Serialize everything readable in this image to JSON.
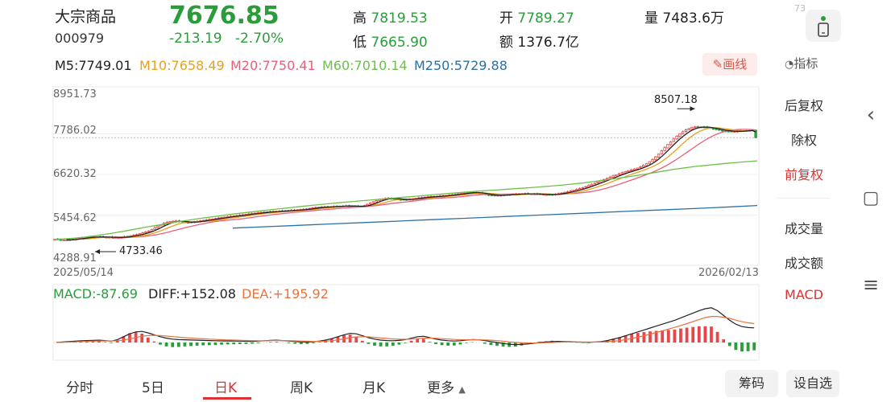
{
  "header": {
    "name": "大宗商品",
    "code": "000979",
    "price": "7676.85",
    "change": "-213.19",
    "change_pct": "-2.70%",
    "high_label": "高",
    "high": "7819.53",
    "low_label": "低",
    "low": "7665.90",
    "open_label": "开",
    "open": "7789.27",
    "amount_label": "额",
    "amount": "1376.7亿",
    "volume_label": "量",
    "volume": "7483.6万",
    "corner_badge": "73",
    "phone_icon": "phone-icon"
  },
  "ma": {
    "m5": "M5:7749.01",
    "m10": "M10:7658.49",
    "m20": "M20:7750.41",
    "m60": "M60:7010.14",
    "m250": "M250:5729.88",
    "colors": {
      "m5": "#222222",
      "m10": "#e8a020",
      "m20": "#e8607a",
      "m60": "#6cc04a",
      "m250": "#2c6fa3"
    }
  },
  "toolbar": {
    "draw_label": "画线",
    "indicator_label": "指标"
  },
  "side_menu": {
    "items": [
      "后复权",
      "除权",
      "前复权",
      "成交量",
      "成交额",
      "MACD"
    ],
    "active": [
      "前复权",
      "MACD"
    ]
  },
  "macd": {
    "macd": "MACD:-87.69",
    "diff": "DIFF:+152.08",
    "dea": "DEA:+195.92"
  },
  "chart_data": {
    "type": "line",
    "yticks": [
      "8951.73",
      "7786.02",
      "6620.32",
      "5454.62",
      "4288.91"
    ],
    "ylim": [
      4288.91,
      8951.73
    ],
    "x_start": "2025/05/14",
    "x_end": "2026/02/13",
    "max_label": "8507.18",
    "min_label": "4733.46",
    "max_value": 8507.18,
    "min_value": 4733.46,
    "last_close": 7676.85,
    "up_color": "#e8474a",
    "down_color": "#2a9d3a",
    "close_series": [
      4760,
      4752,
      4745,
      4738,
      4740,
      4748,
      4760,
      4772,
      4785,
      4800,
      4812,
      4820,
      4826,
      4830,
      4828,
      4825,
      4822,
      4820,
      4818,
      4815,
      4812,
      4810,
      4815,
      4830,
      4845,
      4860,
      4875,
      4895,
      4920,
      4945,
      4970,
      5000,
      5040,
      5090,
      5140,
      5180,
      5220,
      5250,
      5270,
      5280,
      5285,
      5275,
      5262,
      5250,
      5245,
      5250,
      5262,
      5275,
      5290,
      5305,
      5318,
      5330,
      5342,
      5356,
      5370,
      5385,
      5400,
      5410,
      5420,
      5430,
      5440,
      5452,
      5465,
      5478,
      5490,
      5500,
      5510,
      5520,
      5530,
      5538,
      5546,
      5552,
      5558,
      5562,
      5568,
      5574,
      5580,
      5586,
      5592,
      5598,
      5604,
      5612,
      5620,
      5630,
      5645,
      5660,
      5672,
      5680,
      5686,
      5690,
      5692,
      5694,
      5700,
      5706,
      5712,
      5716,
      5718,
      5716,
      5712,
      5706,
      5700,
      5708,
      5725,
      5760,
      5800,
      5840,
      5870,
      5900,
      5920,
      5935,
      5940,
      5930,
      5918,
      5908,
      5900,
      5895,
      5900,
      5908,
      5920,
      5935,
      5950,
      5962,
      5972,
      5980,
      5985,
      5990,
      5995,
      6002,
      6010,
      6018,
      6028,
      6040,
      6052,
      6064,
      6076,
      6088,
      6098,
      6105,
      6108,
      6100,
      6085,
      6065,
      6045,
      6030,
      6020,
      6018,
      6022,
      6028,
      6034,
      6040,
      6046,
      6052,
      6058,
      6062,
      6065,
      6066,
      6066,
      6064,
      6062,
      6058,
      6052,
      6046,
      6042,
      6040,
      6045,
      6056,
      6070,
      6088,
      6106,
      6125,
      6145,
      6168,
      6192,
      6218,
      6245,
      6275,
      6308,
      6340,
      6372,
      6405,
      6440,
      6476,
      6510,
      6545,
      6580,
      6612,
      6642,
      6672,
      6700,
      6726,
      6752,
      6778,
      6806,
      6840,
      6880,
      6928,
      6985,
      7050,
      7125,
      7210,
      7300,
      7390,
      7480,
      7560,
      7640,
      7720,
      7790,
      7850,
      7900,
      7940,
      7970,
      7985,
      7990,
      7986,
      7978,
      7966,
      7950,
      7930,
      7910,
      7890,
      7875,
      7865,
      7858,
      7855,
      7858,
      7864,
      7870,
      7876,
      7880,
      7885,
      7890,
      7676.85
    ],
    "m60_series": [
      4760,
      4770,
      4790,
      4820,
      4860,
      4900,
      4950,
      5000,
      5055,
      5110,
      5160,
      5210,
      5260,
      5305,
      5350,
      5390,
      5430,
      5470,
      5505,
      5540,
      5575,
      5608,
      5640,
      5672,
      5705,
      5735,
      5765,
      5792,
      5820,
      5845,
      5870,
      5895,
      5920,
      5945,
      5970,
      5995,
      6020,
      6045,
      6070,
      6095,
      6118,
      6140,
      6160,
      6180,
      6200,
      6220,
      6240,
      6262,
      6285,
      6310,
      6340,
      6372,
      6410,
      6450,
      6490,
      6530,
      6575,
      6620,
      6670,
      6720,
      6770,
      6810,
      6850,
      6880,
      6910,
      6940,
      6965,
      6990,
      7010.14
    ],
    "m250_series": [
      5080,
      5120,
      5160,
      5200,
      5240,
      5280,
      5320,
      5360,
      5400,
      5440,
      5480,
      5520,
      5560,
      5600,
      5640,
      5680,
      5729.88
    ],
    "macd_ylim": [
      -350,
      350
    ],
    "diff_series": [
      0,
      5,
      10,
      14,
      18,
      20,
      22,
      24,
      20,
      14,
      30,
      60,
      90,
      110,
      115,
      100,
      80,
      60,
      45,
      35,
      30,
      28,
      26,
      24,
      22,
      20,
      18,
      17,
      16,
      15,
      14,
      13,
      12,
      14,
      18,
      22,
      24,
      20,
      15,
      10,
      6,
      5,
      8,
      15,
      25,
      40,
      60,
      80,
      95,
      90,
      70,
      50,
      35,
      25,
      20,
      18,
      22,
      30,
      45,
      60,
      65,
      50,
      35,
      25,
      18,
      15,
      18,
      25,
      30,
      28,
      20,
      10,
      0,
      -10,
      -18,
      -22,
      -20,
      -15,
      -8,
      0,
      5,
      10,
      12,
      10,
      8,
      5,
      3,
      2,
      5,
      10,
      20,
      35,
      50,
      70,
      90,
      110,
      130,
      150,
      170,
      190,
      210,
      230,
      255,
      280,
      305,
      330,
      350,
      360,
      330,
      280,
      230,
      190,
      165,
      155,
      152
    ],
    "dea_series": [
      0,
      2,
      4,
      7,
      10,
      12,
      14,
      16,
      17,
      17,
      18,
      25,
      38,
      52,
      65,
      72,
      74,
      72,
      67,
      61,
      55,
      50,
      46,
      42,
      38,
      35,
      32,
      29,
      27,
      25,
      23,
      21,
      19,
      18,
      18,
      19,
      20,
      20,
      19,
      17,
      15,
      13,
      12,
      12,
      14,
      19,
      27,
      38,
      50,
      58,
      60,
      58,
      53,
      47,
      42,
      37,
      34,
      33,
      35,
      40,
      45,
      46,
      44,
      40,
      36,
      32,
      29,
      28,
      28,
      28,
      27,
      24,
      19,
      13,
      7,
      1,
      -3,
      -5,
      -5,
      -4,
      -2,
      0,
      3,
      5,
      6,
      6,
      5,
      5,
      5,
      6,
      8,
      13,
      20,
      30,
      42,
      56,
      71,
      87,
      104,
      121,
      139,
      157,
      176,
      196,
      217,
      238,
      258,
      270,
      270,
      262,
      250,
      232,
      216,
      204,
      195.92
    ]
  }
}
